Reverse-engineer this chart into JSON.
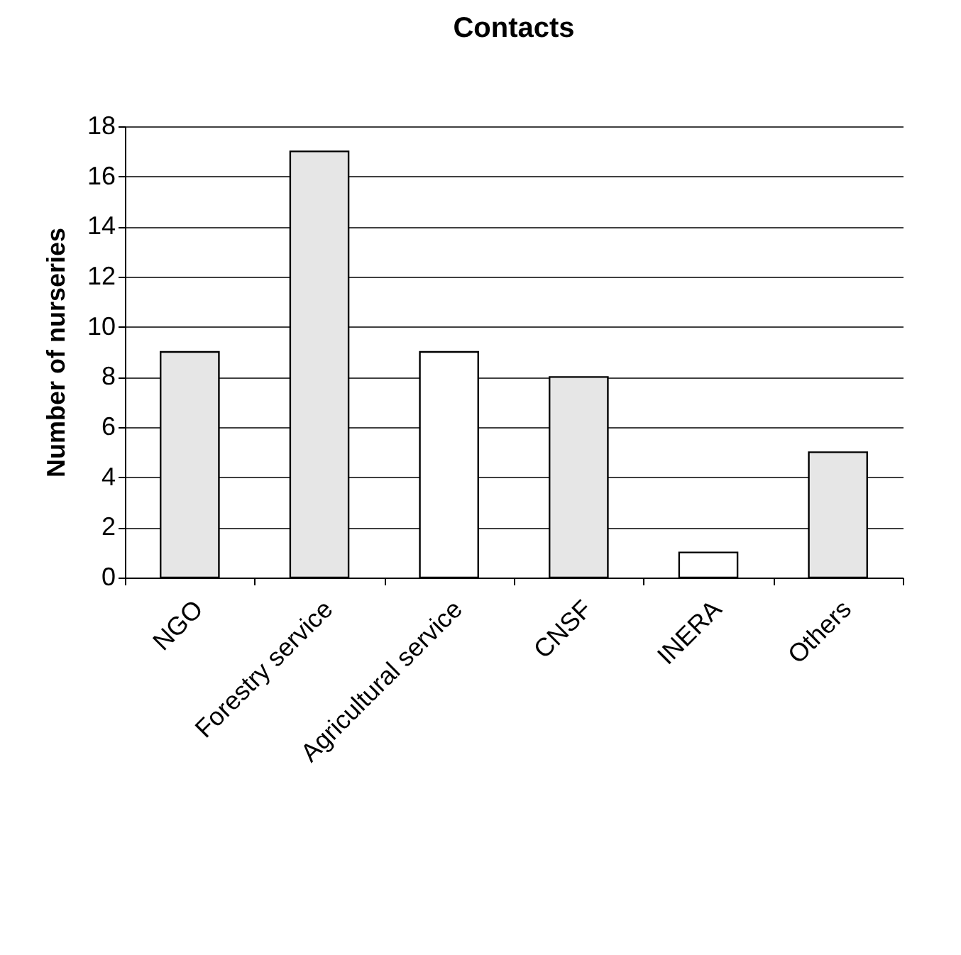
{
  "chart_data": {
    "type": "bar",
    "title": "Contacts",
    "ylabel": "Number of nurseries",
    "categories": [
      "NGO",
      "Forestry service",
      "Agricultural service",
      "CNSF",
      "INERA",
      "Others"
    ],
    "values": [
      9,
      17,
      9,
      8,
      1,
      5
    ],
    "colors": [
      "#e6e6e6",
      "#e6e6e6",
      "#ffffff",
      "#e6e6e6",
      "#ffffff",
      "#e6e6e6"
    ],
    "ylim": [
      0,
      18
    ],
    "yticks": [
      0,
      2,
      4,
      6,
      8,
      10,
      12,
      14,
      16,
      18
    ],
    "grid": "y"
  }
}
